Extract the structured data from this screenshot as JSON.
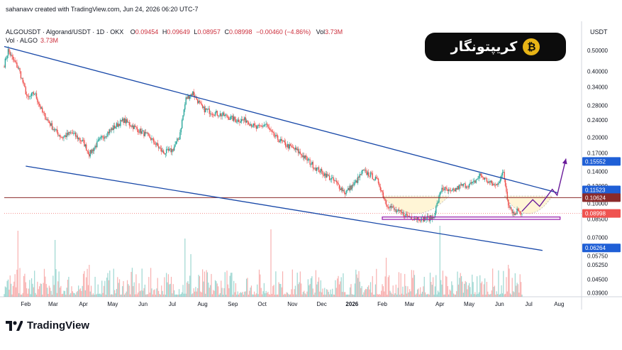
{
  "header": {
    "credit": "sahanavv created with TradingView.com, Jun 24, 2026 06:20 UTC-7",
    "symbol": "ALGOUSDT · Algorand/USDT · 1D · OKX",
    "ohlc": [
      {
        "key": "O",
        "value": "0.09454"
      },
      {
        "key": "H",
        "value": "0.09649"
      },
      {
        "key": "L",
        "value": "0.08957"
      },
      {
        "key": "C",
        "value": "0.08998"
      }
    ],
    "change": "−0.00460 (−4.86%)",
    "vol_key": "Vol",
    "vol_value": "3.73M",
    "volume_indicator_label": "Vol · ALGO",
    "volume_indicator_value": "3.73M",
    "currency": "USDT"
  },
  "brand": {
    "text": "کریپتونگار",
    "icon": "bitcoin-logo-icon"
  },
  "footer": {
    "logo_text": "TradingView",
    "icon": "tradingview-logo-icon"
  },
  "colors": {
    "up": "#26a69a",
    "down": "#ef5350",
    "channel": "#1848a8",
    "resistance": "#8b2a2a",
    "projection": "#6a1b9a",
    "support_box": "#9c27b0",
    "base_fill": "#fff5d6"
  },
  "chart_data": {
    "type": "candlestick",
    "title": "ALGOUSDT · Algorand/USDT · 1D · OKX",
    "y_scale": "log",
    "ylim": [
      0.0375,
      0.55
    ],
    "y_ticks": [
      0.5,
      0.4,
      0.34,
      0.28,
      0.24,
      0.2,
      0.17,
      0.14,
      0.12,
      0.1,
      0.085,
      0.07,
      0.0575,
      0.0525,
      0.045,
      0.039
    ],
    "y_tick_labels": [
      "0.50000",
      "0.40000",
      "0.34000",
      "0.28000",
      "0.24000",
      "0.20000",
      "0.17000",
      "0.14000",
      "0.12000",
      "0.10000",
      "0.08500",
      "0.07000",
      "0.05750",
      "0.05250",
      "0.04500",
      "0.03900"
    ],
    "x_range": [
      "2025-01-10",
      "2026-08-24"
    ],
    "x_ticks": [
      {
        "date": "2025-02-01",
        "label": "Feb"
      },
      {
        "date": "2025-03-01",
        "label": "Mar"
      },
      {
        "date": "2025-04-01",
        "label": "Apr"
      },
      {
        "date": "2025-05-01",
        "label": "May"
      },
      {
        "date": "2025-06-01",
        "label": "Jun"
      },
      {
        "date": "2025-07-01",
        "label": "Jul"
      },
      {
        "date": "2025-08-01",
        "label": "Aug"
      },
      {
        "date": "2025-09-01",
        "label": "Sep"
      },
      {
        "date": "2025-10-01",
        "label": "Oct"
      },
      {
        "date": "2025-11-01",
        "label": "Nov"
      },
      {
        "date": "2025-12-01",
        "label": "Dec"
      },
      {
        "date": "2026-01-01",
        "label": "2026"
      },
      {
        "date": "2026-02-01",
        "label": "Feb"
      },
      {
        "date": "2026-03-01",
        "label": "Mar"
      },
      {
        "date": "2026-04-01",
        "label": "Apr"
      },
      {
        "date": "2026-05-01",
        "label": "May"
      },
      {
        "date": "2026-06-01",
        "label": "Jun"
      },
      {
        "date": "2026-07-01",
        "label": "Jul"
      },
      {
        "date": "2026-08-01",
        "label": "Aug"
      }
    ],
    "price_path": [
      [
        "2025-01-10",
        0.43
      ],
      [
        "2025-01-14",
        0.5
      ],
      [
        "2025-01-18",
        0.46
      ],
      [
        "2025-01-25",
        0.41
      ],
      [
        "2025-02-03",
        0.3
      ],
      [
        "2025-02-10",
        0.32
      ],
      [
        "2025-02-18",
        0.26
      ],
      [
        "2025-03-01",
        0.22
      ],
      [
        "2025-03-10",
        0.2
      ],
      [
        "2025-03-20",
        0.21
      ],
      [
        "2025-04-01",
        0.19
      ],
      [
        "2025-04-07",
        0.168
      ],
      [
        "2025-04-20",
        0.2
      ],
      [
        "2025-05-01",
        0.22
      ],
      [
        "2025-05-12",
        0.24
      ],
      [
        "2025-05-25",
        0.22
      ],
      [
        "2025-06-08",
        0.2
      ],
      [
        "2025-06-22",
        0.17
      ],
      [
        "2025-07-01",
        0.175
      ],
      [
        "2025-07-08",
        0.2
      ],
      [
        "2025-07-15",
        0.3
      ],
      [
        "2025-07-22",
        0.32
      ],
      [
        "2025-08-01",
        0.27
      ],
      [
        "2025-08-12",
        0.26
      ],
      [
        "2025-08-25",
        0.25
      ],
      [
        "2025-09-05",
        0.24
      ],
      [
        "2025-09-15",
        0.24
      ],
      [
        "2025-09-25",
        0.22
      ],
      [
        "2025-10-05",
        0.23
      ],
      [
        "2025-10-10",
        0.21
      ],
      [
        "2025-10-15",
        0.2
      ],
      [
        "2025-10-25",
        0.185
      ],
      [
        "2025-11-05",
        0.175
      ],
      [
        "2025-11-15",
        0.16
      ],
      [
        "2025-11-25",
        0.145
      ],
      [
        "2025-12-05",
        0.135
      ],
      [
        "2025-12-15",
        0.125
      ],
      [
        "2025-12-25",
        0.112
      ],
      [
        "2026-01-05",
        0.125
      ],
      [
        "2026-01-12",
        0.14
      ],
      [
        "2026-01-20",
        0.135
      ],
      [
        "2026-01-28",
        0.125
      ],
      [
        "2026-02-05",
        0.1
      ],
      [
        "2026-02-15",
        0.092
      ],
      [
        "2026-03-01",
        0.087
      ],
      [
        "2026-03-15",
        0.085
      ],
      [
        "2026-03-25",
        0.086
      ],
      [
        "2026-04-03",
        0.118
      ],
      [
        "2026-04-12",
        0.112
      ],
      [
        "2026-04-22",
        0.12
      ],
      [
        "2026-05-05",
        0.123
      ],
      [
        "2026-05-12",
        0.135
      ],
      [
        "2026-05-20",
        0.126
      ],
      [
        "2026-05-28",
        0.12
      ],
      [
        "2026-06-05",
        0.138
      ],
      [
        "2026-06-10",
        0.1
      ],
      [
        "2026-06-16",
        0.089
      ],
      [
        "2026-06-20",
        0.094
      ],
      [
        "2026-06-24",
        0.08998
      ]
    ],
    "volume_spikes": [
      {
        "date": "2025-01-24",
        "value": 0.93
      },
      {
        "date": "2025-03-03",
        "value": 0.8
      },
      {
        "date": "2025-04-07",
        "value": 0.45
      },
      {
        "date": "2025-07-14",
        "value": 0.82
      },
      {
        "date": "2025-07-20",
        "value": 0.6
      },
      {
        "date": "2025-10-10",
        "value": 0.95
      },
      {
        "date": "2026-02-05",
        "value": 0.55
      },
      {
        "date": "2026-04-01",
        "value": 1.0
      },
      {
        "date": "2026-06-10",
        "value": 0.45
      }
    ],
    "price_lines": [
      {
        "value": 0.15552,
        "label": "0.15552",
        "color": "#1f5fd6"
      },
      {
        "value": 0.11523,
        "label": "0.11523",
        "color": "#1f5fd6"
      },
      {
        "value": 0.10624,
        "label": "0.10624",
        "color": "#8b2a2a"
      },
      {
        "value": 0.08998,
        "label": "0.08998",
        "color": "#ef5350"
      },
      {
        "value": 0.06264,
        "label": "0.06264",
        "color": "#1f5fd6"
      }
    ],
    "drawings": {
      "upper_channel": [
        [
          "2025-01-10",
          0.52
        ],
        [
          "2026-07-30",
          0.112
        ]
      ],
      "lower_channel": [
        [
          "2025-02-01",
          0.148
        ],
        [
          "2026-07-15",
          0.061
        ]
      ],
      "resistance_line": 0.10624,
      "support_box": {
        "start": "2026-02-01",
        "end": "2026-08-02",
        "top": 0.0867,
        "bottom": 0.0845
      },
      "projection": [
        [
          "2026-06-24",
          0.092
        ],
        [
          "2026-07-05",
          0.104
        ],
        [
          "2026-07-12",
          0.097
        ],
        [
          "2026-07-25",
          0.116
        ],
        [
          "2026-07-30",
          0.109
        ],
        [
          "2026-08-08",
          0.16
        ]
      ]
    }
  }
}
